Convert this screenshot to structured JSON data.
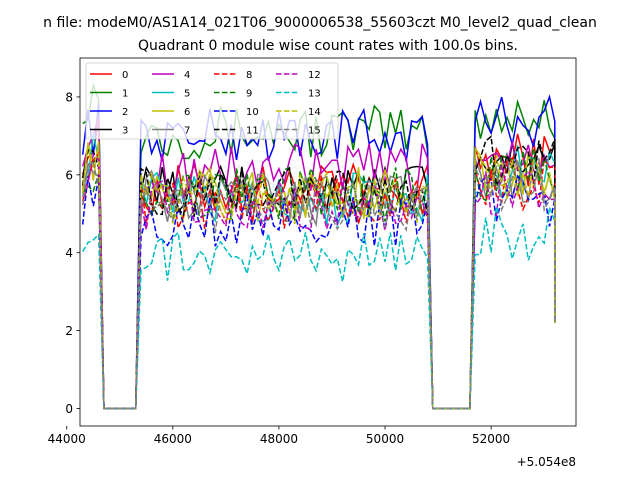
{
  "figure": {
    "suptitle": "n file: modeM0/AS1A14_021T06_9000006538_55603czt M0_level2_quad_clean",
    "title": "Quadrant 0 module wise count rates with 100.0s bins."
  },
  "chart_data": {
    "type": "line",
    "title": "Quadrant 0 module wise count rates with 100.0s bins.",
    "xlabel": "",
    "ylabel": "",
    "x_offset_label": "+5.054e8",
    "xlim": [
      44250,
      53600
    ],
    "ylim": [
      -0.45,
      9.0
    ],
    "x_ticks": [
      44000,
      46000,
      48000,
      50000,
      52000
    ],
    "x_tick_labels": [
      "44000",
      "46000",
      "48000",
      "50000",
      "52000"
    ],
    "y_ticks": [
      0,
      2,
      4,
      6,
      8
    ],
    "y_tick_labels": [
      "0",
      "2",
      "4",
      "6",
      "8"
    ],
    "grid": false,
    "legend_position": "upper-left",
    "segments": [
      {
        "x_start": 44300,
        "x_end": 44600
      },
      {
        "x_start": 45400,
        "x_end": 50800
      },
      {
        "x_start": 51700,
        "x_end": 53200
      }
    ],
    "gap_x": [
      44700,
      45300,
      50800,
      51600
    ],
    "series": [
      {
        "name": "0",
        "color": "#ff0000",
        "dash": "solid",
        "levels": [
          6.7,
          5.6,
          6.4
        ]
      },
      {
        "name": "1",
        "color": "#008000",
        "dash": "solid",
        "levels": [
          8.0,
          7.1,
          7.5
        ]
      },
      {
        "name": "2",
        "color": "#0000ff",
        "dash": "solid",
        "levels": [
          7.2,
          7.0,
          7.4
        ]
      },
      {
        "name": "3",
        "color": "#000000",
        "dash": "solid",
        "levels": [
          6.6,
          5.6,
          6.3
        ]
      },
      {
        "name": "4",
        "color": "#bf00bf",
        "dash": "solid",
        "levels": [
          6.9,
          6.1,
          6.6
        ]
      },
      {
        "name": "5",
        "color": "#00bfbf",
        "dash": "solid",
        "levels": [
          6.5,
          5.4,
          6.1
        ]
      },
      {
        "name": "6",
        "color": "#bfbf00",
        "dash": "solid",
        "levels": [
          6.3,
          5.5,
          6.0
        ]
      },
      {
        "name": "7",
        "color": "#808080",
        "dash": "solid",
        "levels": [
          6.1,
          5.4,
          5.9
        ]
      },
      {
        "name": "8",
        "color": "#ff0000",
        "dash": "dashed",
        "levels": [
          6.0,
          5.3,
          5.8
        ]
      },
      {
        "name": "9",
        "color": "#008000",
        "dash": "dashed",
        "levels": [
          6.2,
          5.5,
          6.0
        ]
      },
      {
        "name": "10",
        "color": "#0000ff",
        "dash": "dashed",
        "levels": [
          5.4,
          4.8,
          5.3
        ]
      },
      {
        "name": "11",
        "color": "#000000",
        "dash": "dashed",
        "levels": [
          6.4,
          5.6,
          6.3
        ]
      },
      {
        "name": "12",
        "color": "#bf00bf",
        "dash": "dashed",
        "levels": [
          5.9,
          5.2,
          5.6
        ]
      },
      {
        "name": "13",
        "color": "#00bfbf",
        "dash": "dashed",
        "levels": [
          4.7,
          3.9,
          4.5
        ]
      },
      {
        "name": "14",
        "color": "#bfbf00",
        "dash": "dashed",
        "levels": [
          6.2,
          5.4,
          5.9
        ]
      },
      {
        "name": "15",
        "color": "#808080",
        "dash": "dashed",
        "levels": [
          5.9,
          5.2,
          5.7
        ]
      }
    ]
  }
}
